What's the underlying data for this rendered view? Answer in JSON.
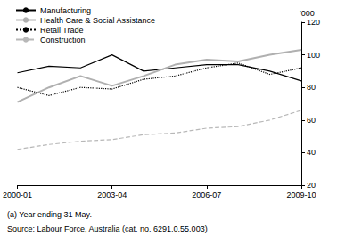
{
  "chart_data": {
    "type": "line",
    "ylabel": "'000",
    "categories": [
      "2000-01",
      null,
      null,
      "2003-04",
      null,
      null,
      "2006-07",
      null,
      null,
      "2009-10"
    ],
    "series": [
      {
        "name": "Manufacturing",
        "color": "#000000",
        "line_style": "solid",
        "values": [
          89,
          93,
          92,
          100,
          90,
          92,
          94,
          94,
          90,
          84
        ]
      },
      {
        "name": "Health Care & Social Assistance",
        "color": "#b0b0b0",
        "line_style": "solid",
        "values": [
          71,
          80,
          87,
          81,
          87,
          94,
          97,
          96,
          100,
          103
        ]
      },
      {
        "name": "Retail Trade",
        "color": "#000000",
        "line_style": "dotted",
        "values": [
          80,
          75,
          80,
          79,
          85,
          87,
          92,
          95,
          88,
          92
        ]
      },
      {
        "name": "Construction",
        "color": "#b8b8b8",
        "line_style": "dashed",
        "values": [
          42,
          45,
          47,
          48,
          51,
          52,
          55,
          56,
          60,
          66
        ]
      }
    ],
    "ylim": [
      20,
      120
    ],
    "yticks": [
      20,
      40,
      60,
      80,
      100,
      120
    ],
    "grid": false,
    "legend": "upper left",
    "marker": "none",
    "annotations": [
      "(a) Year ending 31 May.",
      "Source: Labour Force, Australia (cat. no. 6291.0.55.003)"
    ]
  }
}
